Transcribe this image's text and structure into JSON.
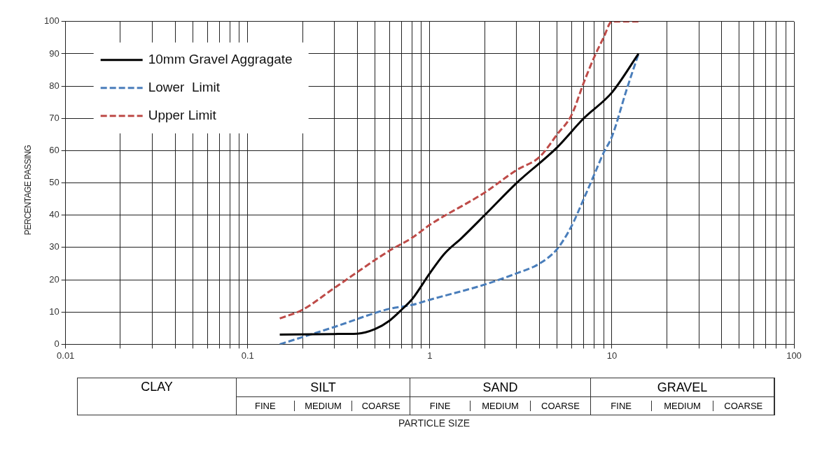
{
  "chart_data": {
    "type": "line",
    "ylabel": "PERCENTAGE PASSING",
    "log": "x",
    "xlim": [
      0.01,
      100
    ],
    "ylim": [
      0,
      100
    ],
    "xticks": [
      0.01,
      {
        "value": 0.02,
        "label": null
      },
      {
        "value": 0.03,
        "label": null
      },
      {
        "value": 0.04,
        "label": null
      },
      {
        "value": 0.05,
        "label": null
      },
      {
        "value": 0.06,
        "label": null
      },
      {
        "value": 0.07,
        "label": null
      },
      {
        "value": 0.08,
        "label": null
      },
      {
        "value": 0.09,
        "label": null
      },
      0.1,
      {
        "value": 0.2,
        "label": null
      },
      {
        "value": 0.3,
        "label": null
      },
      {
        "value": 0.4,
        "label": null
      },
      {
        "value": 0.5,
        "label": null
      },
      {
        "value": 0.6,
        "label": null
      },
      {
        "value": 0.7,
        "label": null
      },
      {
        "value": 0.8,
        "label": null
      },
      {
        "value": 0.9,
        "label": null
      },
      1,
      {
        "value": 2,
        "label": null
      },
      {
        "value": 3,
        "label": null
      },
      {
        "value": 4,
        "label": null
      },
      {
        "value": 5,
        "label": null
      },
      {
        "value": 6,
        "label": null
      },
      {
        "value": 7,
        "label": null
      },
      {
        "value": 8,
        "label": null
      },
      {
        "value": 9,
        "label": null
      },
      10,
      {
        "value": 20,
        "label": null
      },
      {
        "value": 30,
        "label": null
      },
      {
        "value": 40,
        "label": null
      },
      {
        "value": 50,
        "label": null
      },
      {
        "value": 60,
        "label": null
      },
      {
        "value": 70,
        "label": null
      },
      {
        "value": 80,
        "label": null
      },
      {
        "value": 90,
        "label": null
      },
      100
    ],
    "yticks": [
      0,
      10,
      20,
      30,
      40,
      50,
      60,
      70,
      80,
      90,
      100
    ],
    "grid": true,
    "legend": "top left",
    "marker": "none",
    "series": [
      {
        "name": "10mm Gravel Aggragate",
        "color": "#000000",
        "line_style": "solid",
        "x": [
          0.15,
          0.3,
          0.4,
          0.5,
          0.6,
          0.7,
          0.8,
          1,
          1.2,
          1.5,
          2,
          3,
          5,
          7,
          10,
          14
        ],
        "values": [
          3,
          3.2,
          3.3,
          4.7,
          7.3,
          10.7,
          14,
          22,
          28,
          33,
          40,
          50,
          61,
          70,
          78,
          90
        ]
      },
      {
        "name": "Lower  Limit",
        "color": "#4a7ebb",
        "line_style": "dashed",
        "x": [
          0.15,
          0.3,
          0.6,
          0.8,
          1,
          2,
          3,
          4,
          5,
          6,
          7,
          8,
          9,
          10,
          12,
          14
        ],
        "values": [
          0,
          5.4,
          11,
          12.2,
          13.8,
          18.5,
          22,
          25,
          29.5,
          36.6,
          45,
          52.6,
          59.3,
          64.3,
          78.6,
          90
        ]
      },
      {
        "name": "Upper Limit",
        "color": "#be4b48",
        "line_style": "dashed",
        "x": [
          0.15,
          0.2,
          0.3,
          0.6,
          0.8,
          1,
          2,
          3,
          4,
          5,
          6,
          7,
          8,
          9,
          10,
          14
        ],
        "values": [
          8,
          10.7,
          17.5,
          29,
          33,
          37,
          47,
          54,
          58,
          65,
          71,
          81,
          89,
          95,
          100,
          100
        ]
      }
    ],
    "annotations": [
      "CLAY",
      "SILT",
      "SAND",
      "GRAVEL",
      "FINE",
      "MEDIUM",
      "COARSE",
      "FINE",
      "MEDIUM",
      "COARSE",
      "FINE",
      "MEDIUM",
      "COARSE",
      "PARTICLE SIZE"
    ]
  }
}
